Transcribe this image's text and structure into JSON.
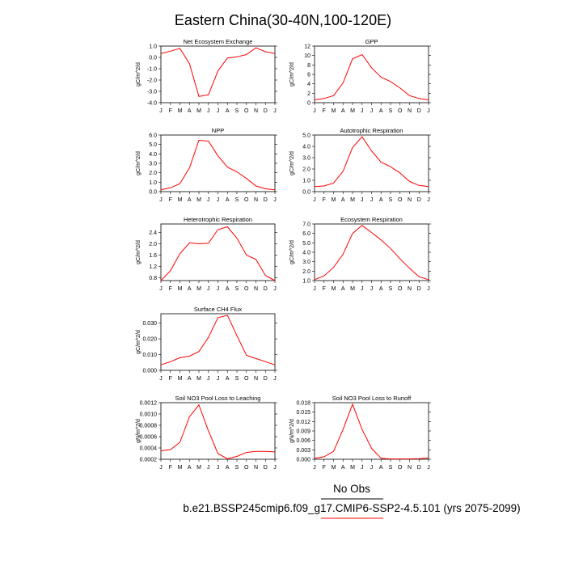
{
  "page": {
    "title": "Eastern China(30-40N,100-120E)",
    "legend_obs": "No Obs",
    "legend_model": "b.e21.BSSP245cmip6.f09_g17.CMIP6-SSP2-4.5.101 (yrs 2075-2099)",
    "obs_color": "#000000",
    "model_color": "#ff0000"
  },
  "chart_data": [
    {
      "type": "line",
      "title": "Net Ecosystem Exchange",
      "ylabel": "gC/m^2/d",
      "categories": [
        "J",
        "F",
        "M",
        "A",
        "M",
        "J",
        "J",
        "A",
        "S",
        "O",
        "N",
        "D",
        "J"
      ],
      "ylim": [
        -4.0,
        1.0
      ],
      "yticks": [
        -4.0,
        -3.0,
        -2.0,
        -1.0,
        0.0,
        1.0
      ],
      "ytick_labels": [
        "-4.0",
        "-3.0",
        "-2.0",
        "-1.0",
        "0.0",
        "1.0"
      ],
      "series": [
        {
          "values": [
            0.35,
            0.55,
            0.8,
            -0.55,
            -3.45,
            -3.3,
            -1.2,
            -0.05,
            0.05,
            0.25,
            0.85,
            0.5,
            0.35
          ]
        }
      ]
    },
    {
      "type": "line",
      "title": "GPP",
      "ylabel": "gC/m^2/d",
      "categories": [
        "J",
        "F",
        "M",
        "A",
        "M",
        "J",
        "J",
        "A",
        "S",
        "O",
        "N",
        "D",
        "J"
      ],
      "ylim": [
        0,
        12
      ],
      "yticks": [
        0,
        2,
        4,
        6,
        8,
        10,
        12
      ],
      "ytick_labels": [
        "0",
        "2",
        "4",
        "6",
        "8",
        "10",
        "12"
      ],
      "series": [
        {
          "values": [
            0.6,
            0.9,
            1.5,
            4.2,
            9.3,
            10.2,
            7.4,
            5.4,
            4.5,
            3.1,
            1.5,
            0.9,
            0.6
          ]
        }
      ]
    },
    {
      "type": "line",
      "title": "NPP",
      "ylabel": "gC/m^2/d",
      "categories": [
        "J",
        "F",
        "M",
        "A",
        "M",
        "J",
        "J",
        "A",
        "S",
        "O",
        "N",
        "D",
        "J"
      ],
      "ylim": [
        0,
        6
      ],
      "yticks": [
        0,
        1,
        2,
        3,
        4,
        5,
        6
      ],
      "ytick_labels": [
        "0.0",
        "1.0",
        "2.0",
        "3.0",
        "4.0",
        "5.0",
        "6.0"
      ],
      "series": [
        {
          "values": [
            0.2,
            0.4,
            0.85,
            2.5,
            5.45,
            5.35,
            3.8,
            2.6,
            2.1,
            1.4,
            0.6,
            0.3,
            0.2
          ]
        }
      ]
    },
    {
      "type": "line",
      "title": "Autotrophic Respiration",
      "ylabel": "gC/m^2/d",
      "categories": [
        "J",
        "F",
        "M",
        "A",
        "M",
        "J",
        "J",
        "A",
        "S",
        "O",
        "N",
        "D",
        "J"
      ],
      "ylim": [
        0,
        5
      ],
      "yticks": [
        0,
        1,
        2,
        3,
        4,
        5
      ],
      "ytick_labels": [
        "0.0",
        "1.0",
        "2.0",
        "3.0",
        "4.0",
        "5.0"
      ],
      "series": [
        {
          "values": [
            0.45,
            0.5,
            0.75,
            1.8,
            3.9,
            4.85,
            3.6,
            2.6,
            2.2,
            1.65,
            0.9,
            0.55,
            0.45
          ]
        }
      ]
    },
    {
      "type": "line",
      "title": "Heterotrophic Respiration",
      "ylabel": "gC/m^2/d",
      "categories": [
        "J",
        "F",
        "M",
        "A",
        "M",
        "J",
        "J",
        "A",
        "S",
        "O",
        "N",
        "D",
        "J"
      ],
      "ylim": [
        0.7,
        2.7
      ],
      "yticks": [
        0.8,
        1.2,
        1.6,
        2.0,
        2.4
      ],
      "ytick_labels": [
        "0.8",
        "1.2",
        "1.6",
        "2.0",
        "2.4"
      ],
      "series": [
        {
          "values": [
            0.7,
            1.05,
            1.65,
            2.03,
            2.0,
            2.02,
            2.5,
            2.6,
            2.2,
            1.6,
            1.45,
            0.88,
            0.7
          ]
        }
      ]
    },
    {
      "type": "line",
      "title": "Ecosystem Respiration",
      "ylabel": "gC/m^2/d",
      "categories": [
        "J",
        "F",
        "M",
        "A",
        "M",
        "J",
        "J",
        "A",
        "S",
        "O",
        "N",
        "D",
        "J"
      ],
      "ylim": [
        1.0,
        7.0
      ],
      "yticks": [
        1,
        2,
        3,
        4,
        5,
        6,
        7
      ],
      "ytick_labels": [
        "1.0",
        "2.0",
        "3.0",
        "4.0",
        "5.0",
        "6.0",
        "7.0"
      ],
      "series": [
        {
          "values": [
            1.1,
            1.5,
            2.4,
            3.8,
            6.0,
            6.85,
            6.1,
            5.3,
            4.4,
            3.3,
            2.3,
            1.4,
            1.1
          ]
        }
      ]
    },
    {
      "type": "line",
      "title": "Surface CH4 Flux",
      "ylabel": "gC/m^2/d",
      "categories": [
        "J",
        "F",
        "M",
        "A",
        "M",
        "J",
        "J",
        "A",
        "S",
        "O",
        "N",
        "D",
        "J"
      ],
      "ylim": [
        0,
        0.036
      ],
      "yticks": [
        0,
        0.01,
        0.02,
        0.03
      ],
      "ytick_labels": [
        "0.000",
        "0.010",
        "0.020",
        "0.030"
      ],
      "series": [
        {
          "values": [
            0.0035,
            0.0055,
            0.008,
            0.009,
            0.012,
            0.021,
            0.0335,
            0.035,
            0.022,
            0.0095,
            0.0075,
            0.0055,
            0.0035
          ]
        }
      ]
    },
    {
      "type": "line",
      "title": "Soil NO3 Pool Loss to Leaching",
      "ylabel": "gN/m^2/d",
      "categories": [
        "J",
        "F",
        "M",
        "A",
        "M",
        "J",
        "J",
        "A",
        "S",
        "O",
        "N",
        "D",
        "J"
      ],
      "ylim": [
        0.0002,
        0.0012
      ],
      "yticks": [
        0.0002,
        0.0004,
        0.0006,
        0.0008,
        0.001,
        0.0012
      ],
      "ytick_labels": [
        "0.0002",
        "0.0004",
        "0.0006",
        "0.0008",
        "0.0010",
        "0.0012"
      ],
      "series": [
        {
          "values": [
            0.00035,
            0.00037,
            0.0005,
            0.00095,
            0.00116,
            0.0007,
            0.0003,
            0.00021,
            0.00025,
            0.00032,
            0.00034,
            0.00034,
            0.00033
          ]
        }
      ]
    },
    {
      "type": "line",
      "title": "Soil NO3 Pool Loss to Runoff",
      "ylabel": "gN/m^2/d",
      "categories": [
        "J",
        "F",
        "M",
        "A",
        "M",
        "J",
        "J",
        "A",
        "S",
        "O",
        "N",
        "D",
        "J"
      ],
      "ylim": [
        0,
        0.018
      ],
      "yticks": [
        0,
        0.003,
        0.006,
        0.009,
        0.012,
        0.015,
        0.018
      ],
      "ytick_labels": [
        "0.000",
        "0.003",
        "0.006",
        "0.009",
        "0.012",
        "0.015",
        "0.018"
      ],
      "series": [
        {
          "values": [
            0.0003,
            0.0008,
            0.0025,
            0.0095,
            0.0175,
            0.0095,
            0.0035,
            0.0003,
            0.0001,
            0.0001,
            0.0001,
            0.0002,
            0.0004
          ]
        }
      ]
    }
  ]
}
